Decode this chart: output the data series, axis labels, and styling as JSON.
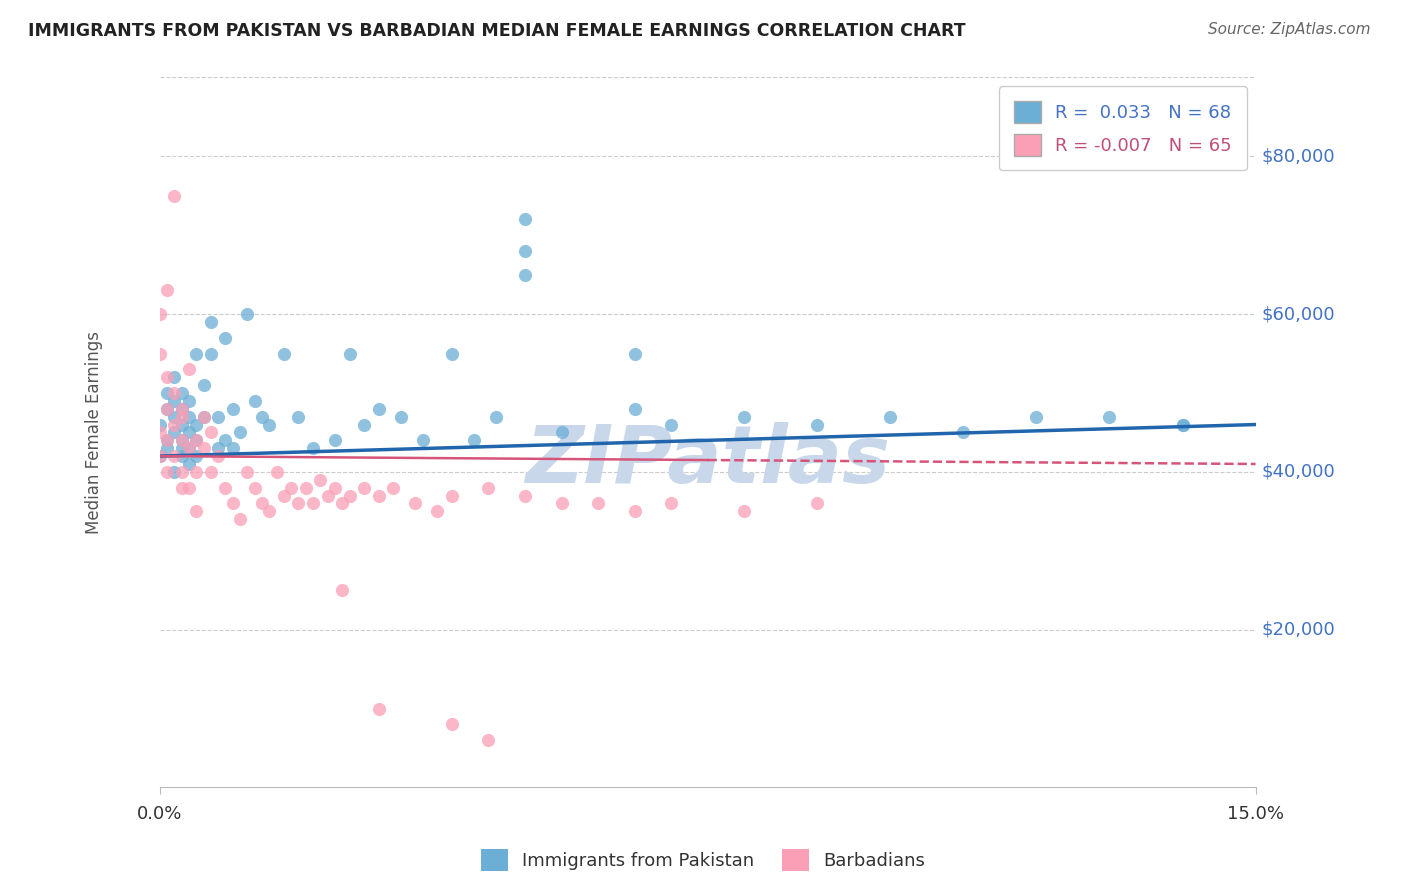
{
  "title": "IMMIGRANTS FROM PAKISTAN VS BARBADIAN MEDIAN FEMALE EARNINGS CORRELATION CHART",
  "source_text": "Source: ZipAtlas.com",
  "ylabel": "Median Female Earnings",
  "xlim": [
    0.0,
    0.15
  ],
  "ylim": [
    0,
    90000
  ],
  "series1_label": "Immigrants from Pakistan",
  "series2_label": "Barbadians",
  "series1_color": "#6baed6",
  "series2_color": "#fa9fb5",
  "series1_line_color": "#2166ac",
  "series2_line_color": "#d6547a",
  "background_color": "#ffffff",
  "grid_color": "#cccccc",
  "title_color": "#222222",
  "ytick_color": "#4472c4",
  "watermark_text": "ZIPatlas",
  "watermark_color": "#c8d8ea",
  "series1_x": [
    0.0,
    0.0,
    0.001,
    0.001,
    0.001,
    0.001,
    0.002,
    0.002,
    0.002,
    0.002,
    0.002,
    0.003,
    0.003,
    0.003,
    0.003,
    0.003,
    0.003,
    0.004,
    0.004,
    0.004,
    0.004,
    0.004,
    0.005,
    0.005,
    0.005,
    0.005,
    0.006,
    0.006,
    0.007,
    0.007,
    0.008,
    0.008,
    0.009,
    0.009,
    0.01,
    0.01,
    0.011,
    0.012,
    0.013,
    0.014,
    0.015,
    0.017,
    0.019,
    0.021,
    0.024,
    0.026,
    0.028,
    0.03,
    0.033,
    0.036,
    0.04,
    0.043,
    0.046,
    0.05,
    0.05,
    0.05,
    0.055,
    0.065,
    0.065,
    0.07,
    0.08,
    0.09,
    0.1,
    0.11,
    0.12,
    0.13,
    0.14,
    0.14
  ],
  "series1_y": [
    42000,
    46000,
    44000,
    48000,
    50000,
    43000,
    45000,
    47000,
    49000,
    52000,
    40000,
    43000,
    46000,
    44000,
    42000,
    48000,
    50000,
    45000,
    43000,
    47000,
    41000,
    49000,
    55000,
    44000,
    46000,
    42000,
    51000,
    47000,
    59000,
    55000,
    47000,
    43000,
    57000,
    44000,
    48000,
    43000,
    45000,
    60000,
    49000,
    47000,
    46000,
    55000,
    47000,
    43000,
    44000,
    55000,
    46000,
    48000,
    47000,
    44000,
    55000,
    44000,
    47000,
    68000,
    72000,
    65000,
    45000,
    55000,
    48000,
    46000,
    47000,
    46000,
    47000,
    45000,
    47000,
    47000,
    46000,
    46000
  ],
  "series2_x": [
    0.0,
    0.0,
    0.0,
    0.0,
    0.001,
    0.001,
    0.001,
    0.001,
    0.001,
    0.002,
    0.002,
    0.002,
    0.002,
    0.003,
    0.003,
    0.003,
    0.003,
    0.003,
    0.004,
    0.004,
    0.004,
    0.005,
    0.005,
    0.005,
    0.006,
    0.006,
    0.007,
    0.007,
    0.008,
    0.009,
    0.01,
    0.011,
    0.012,
    0.013,
    0.014,
    0.015,
    0.016,
    0.017,
    0.018,
    0.019,
    0.02,
    0.021,
    0.022,
    0.023,
    0.024,
    0.025,
    0.026,
    0.028,
    0.03,
    0.032,
    0.035,
    0.038,
    0.04,
    0.045,
    0.05,
    0.055,
    0.06,
    0.065,
    0.07,
    0.08,
    0.09,
    0.04,
    0.045,
    0.03,
    0.025
  ],
  "series2_y": [
    42000,
    60000,
    55000,
    45000,
    63000,
    52000,
    48000,
    44000,
    40000,
    75000,
    50000,
    46000,
    42000,
    48000,
    44000,
    40000,
    47000,
    38000,
    53000,
    43000,
    38000,
    44000,
    40000,
    35000,
    47000,
    43000,
    45000,
    40000,
    42000,
    38000,
    36000,
    34000,
    40000,
    38000,
    36000,
    35000,
    40000,
    37000,
    38000,
    36000,
    38000,
    36000,
    39000,
    37000,
    38000,
    36000,
    37000,
    38000,
    37000,
    38000,
    36000,
    35000,
    37000,
    38000,
    37000,
    36000,
    36000,
    35000,
    36000,
    35000,
    36000,
    8000,
    6000,
    10000,
    25000
  ]
}
